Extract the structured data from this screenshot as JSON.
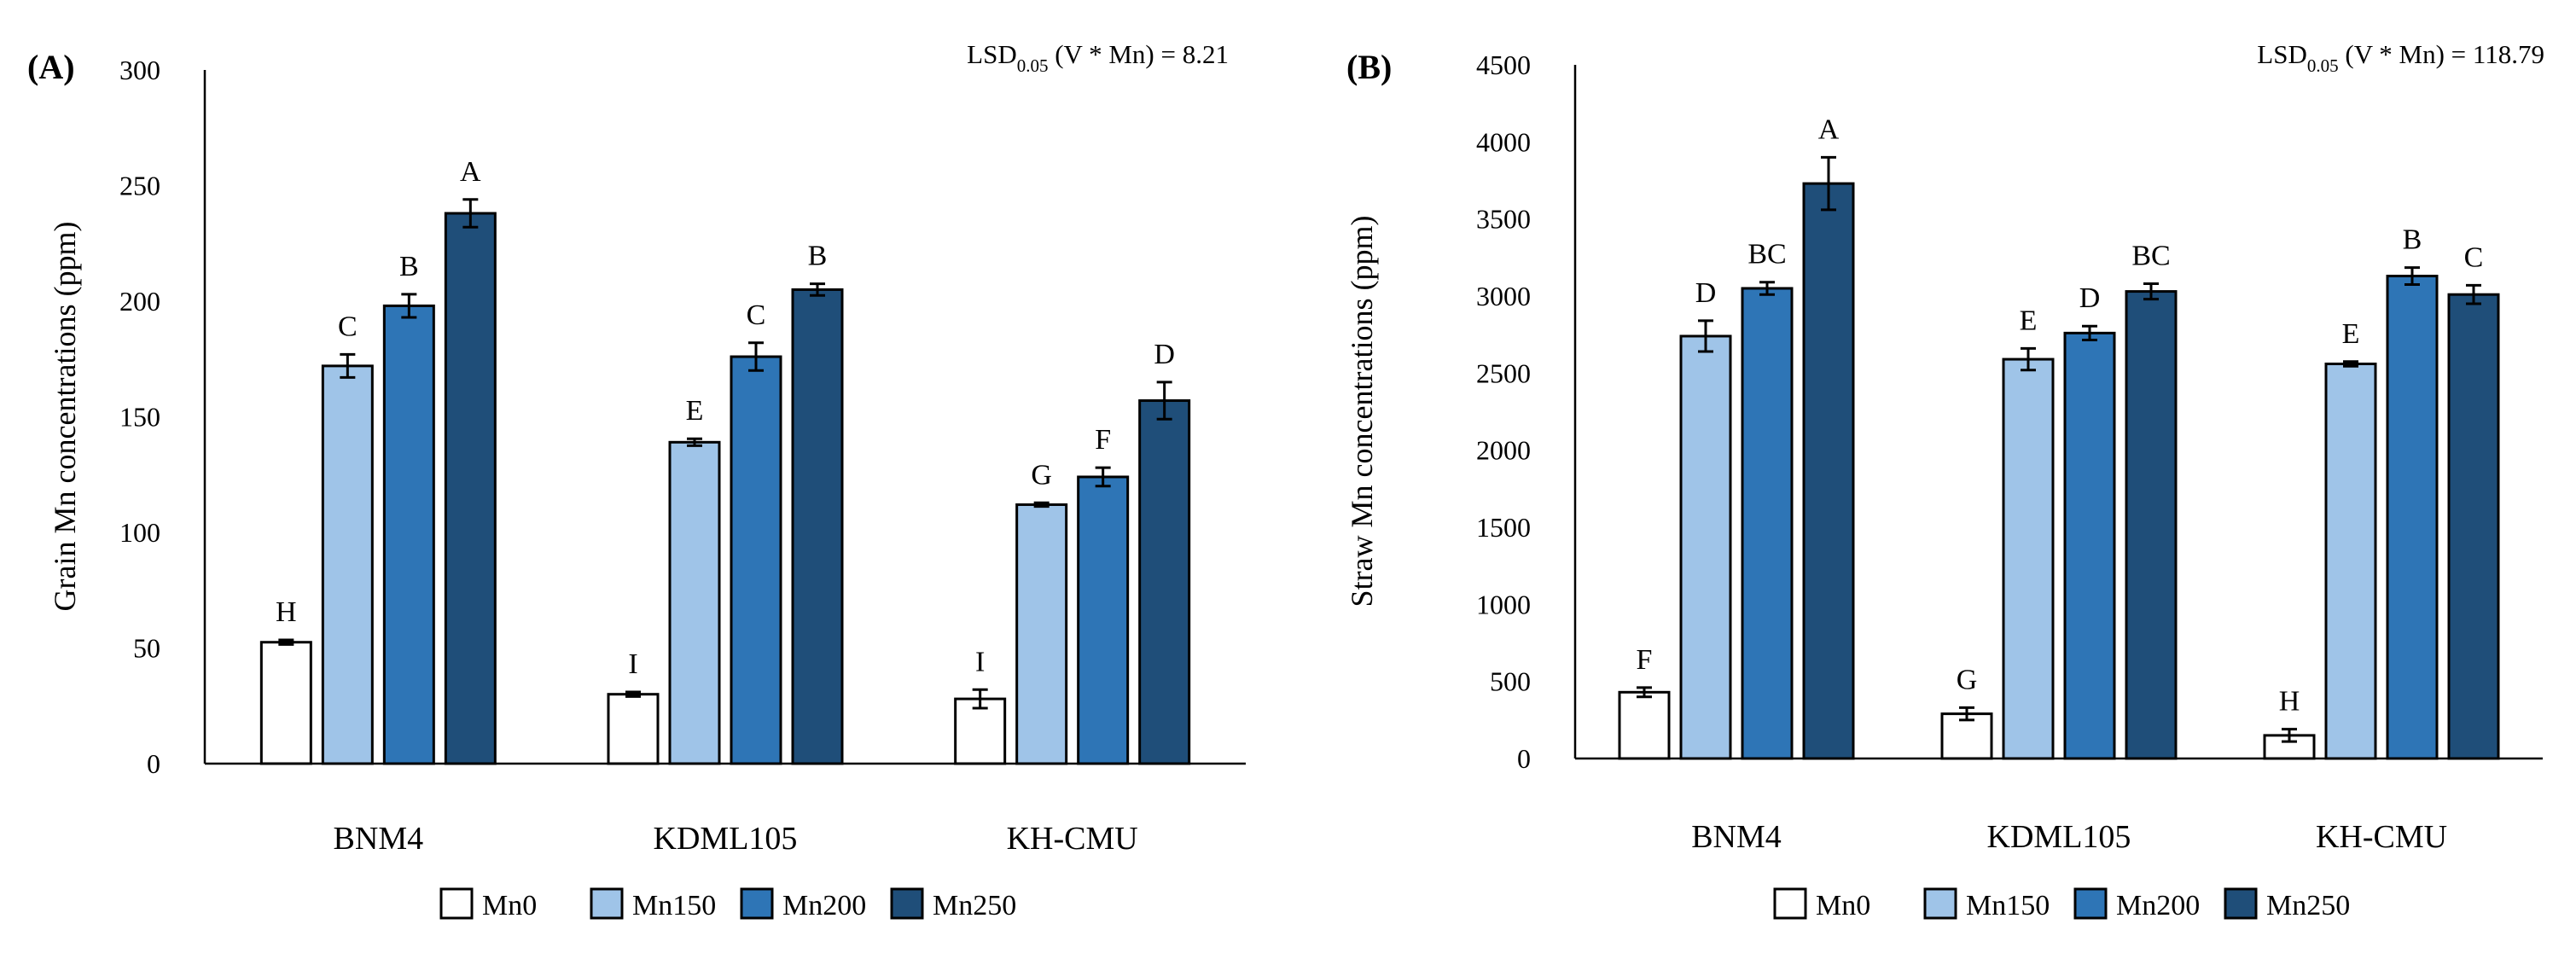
{
  "chart_data": [
    {
      "type": "bar",
      "panel_label": "(A)",
      "lsd": {
        "prefix": "LSD",
        "sub": "0.05",
        "suffix": " (V * Mn) = 8.21"
      },
      "ylabel": "Grain Mn concentrations (ppm)",
      "xlabel": "",
      "ylim": [
        0,
        300
      ],
      "yticks": [
        0,
        50,
        100,
        150,
        200,
        250,
        300
      ],
      "categories": [
        "BNM4",
        "KDML105",
        "KH-CMU"
      ],
      "series": [
        {
          "name": "Mn0",
          "color": "#ffffff",
          "values": [
            52.5,
            30,
            28
          ],
          "errors": [
            1,
            1,
            4
          ],
          "letters": [
            "H",
            "I",
            "I"
          ]
        },
        {
          "name": "Mn150",
          "color": "#9fc4e8",
          "values": [
            172,
            139,
            112
          ],
          "errors": [
            5,
            1.5,
            0.8
          ],
          "letters": [
            "C",
            "E",
            "G"
          ]
        },
        {
          "name": "Mn200",
          "color": "#2e75b6",
          "values": [
            198,
            176,
            124
          ],
          "errors": [
            5,
            6,
            4
          ],
          "letters": [
            "B",
            "C",
            "F"
          ]
        },
        {
          "name": "Mn250",
          "color": "#1f4e79",
          "values": [
            238,
            205,
            157
          ],
          "errors": [
            6,
            2.5,
            8
          ],
          "letters": [
            "A",
            "B",
            "D"
          ]
        }
      ],
      "legend": [
        "Mn0",
        "Mn150",
        "Mn200",
        "Mn250"
      ],
      "legend_position": "bottom-center"
    },
    {
      "type": "bar",
      "panel_label": "(B)",
      "lsd": {
        "prefix": "LSD",
        "sub": "0.05",
        "suffix": " (V * Mn) = 118.79"
      },
      "ylabel": "Straw Mn concentrations (ppm)",
      "xlabel": "",
      "ylim": [
        0,
        4500
      ],
      "yticks": [
        0,
        500,
        1000,
        1500,
        2000,
        2500,
        3000,
        3500,
        4000,
        4500
      ],
      "categories": [
        "BNM4",
        "KDML105",
        "KH-CMU"
      ],
      "series": [
        {
          "name": "Mn0",
          "color": "#ffffff",
          "values": [
            430,
            290,
            150
          ],
          "errors": [
            30,
            40,
            40
          ],
          "letters": [
            "F",
            "G",
            "H"
          ]
        },
        {
          "name": "Mn150",
          "color": "#9fc4e8",
          "values": [
            2740,
            2590,
            2560
          ],
          "errors": [
            100,
            70,
            15
          ],
          "letters": [
            "D",
            "E",
            "E"
          ]
        },
        {
          "name": "Mn200",
          "color": "#2e75b6",
          "values": [
            3050,
            2760,
            3130
          ],
          "errors": [
            40,
            45,
            55
          ],
          "letters": [
            "BC",
            "D",
            "B"
          ]
        },
        {
          "name": "Mn250",
          "color": "#1f4e79",
          "values": [
            3730,
            3030,
            3010
          ],
          "errors": [
            170,
            50,
            60
          ],
          "letters": [
            "A",
            "BC",
            "C"
          ]
        }
      ],
      "legend": [
        "Mn0",
        "Mn150",
        "Mn200",
        "Mn250"
      ],
      "legend_position": "bottom-center"
    }
  ]
}
